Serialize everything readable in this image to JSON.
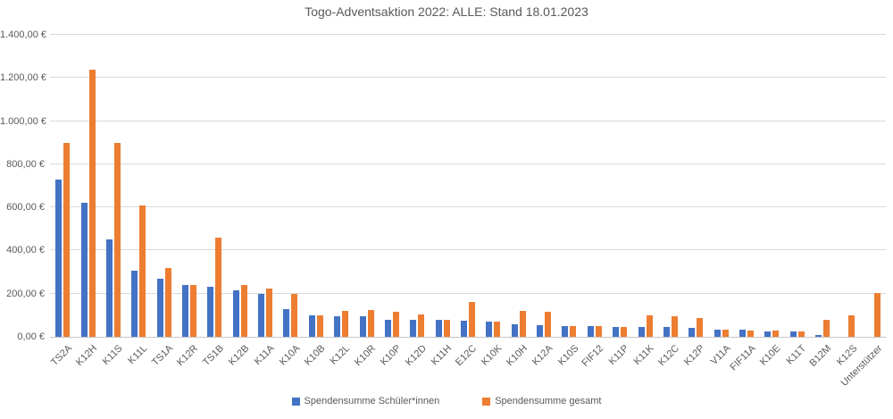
{
  "chart_data": {
    "type": "bar",
    "title": "Togo-Adventsaktion 2022: ALLE: Stand 18.01.2023",
    "categories": [
      "TS2A",
      "K12H",
      "K11S",
      "K11L",
      "TS1A",
      "K12R",
      "TS1B",
      "K12B",
      "K11A",
      "K10A",
      "K10B",
      "K12L",
      "K10R",
      "K10P",
      "K12D",
      "K11H",
      "E12C",
      "K10K",
      "K10H",
      "K12A",
      "K10S",
      "FIF12",
      "K11P",
      "K11K",
      "K12C",
      "K12P",
      "V11A",
      "FIF11A",
      "K10E",
      "K11T",
      "B12M",
      "K12S",
      "Unterstützer"
    ],
    "series": [
      {
        "name": "Spendensumme Schüler*innen",
        "color": "#4472C4",
        "values": [
          730,
          620,
          450,
          305,
          270,
          240,
          230,
          215,
          200,
          130,
          100,
          95,
          95,
          80,
          80,
          80,
          75,
          70,
          60,
          55,
          50,
          50,
          45,
          45,
          45,
          40,
          35,
          35,
          25,
          25,
          10,
          0,
          0
        ]
      },
      {
        "name": "Spendensumme gesamt",
        "color": "#ED7D31",
        "values": [
          900,
          1240,
          900,
          610,
          320,
          240,
          460,
          240,
          225,
          200,
          100,
          120,
          125,
          115,
          105,
          80,
          160,
          70,
          120,
          115,
          50,
          50,
          45,
          100,
          95,
          85,
          35,
          30,
          30,
          25,
          80,
          100,
          205
        ]
      }
    ],
    "y_axis": {
      "min": 0,
      "max": 1400,
      "step": 200,
      "tick_labels": [
        "0,00 €",
        "200,00 €",
        "400,00 €",
        "600,00 €",
        "800,00 €",
        "1.000,00 €",
        "1.200,00 €",
        "1.400,00 €"
      ]
    },
    "grid": true,
    "legend_position": "bottom",
    "colors": {
      "text": "#595959",
      "gridline": "#D9D9D9",
      "axis_line": "#C6C6C6",
      "background": "#FFFFFF"
    }
  }
}
